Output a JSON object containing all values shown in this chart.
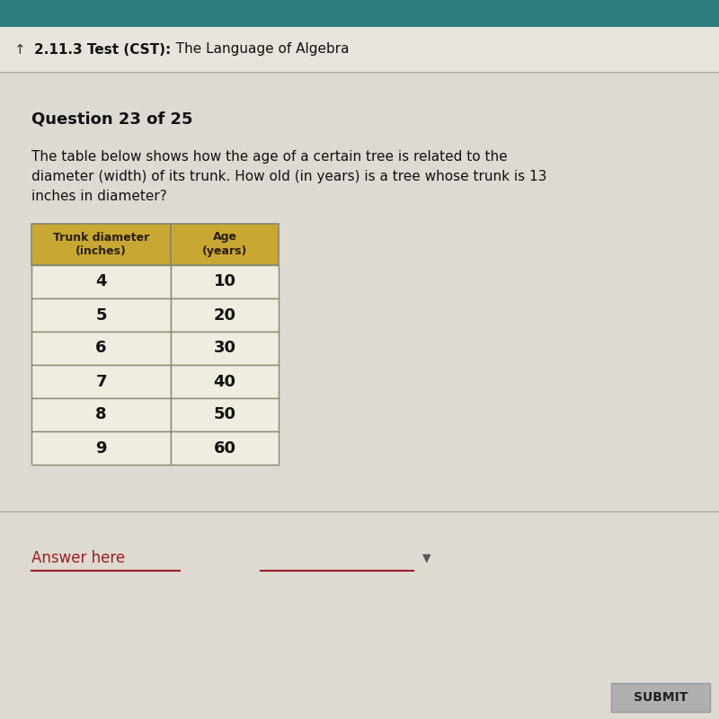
{
  "header_bg": "#2d7d7d",
  "page_bg": "#dedad2",
  "header_text_bold": "2.11.3 Test (CST):",
  "header_text_normal": "  The Language of Algebra",
  "header_text_color": "#1a1a1a",
  "header_symbol": "↑",
  "question_label": "Question 23 of 25",
  "question_text_line1": "The table below shows how the age of a certain tree is related to the",
  "question_text_line2": "diameter (width) of its trunk. How old (in years) is a tree whose trunk is 13",
  "question_text_line3": "inches in diameter?",
  "col1_header": "Trunk diameter\n(inches)",
  "col2_header": "Age\n(years)",
  "header_cell_bg": "#c8a832",
  "header_cell_text": "#2a1e00",
  "data_rows": [
    [
      4,
      10
    ],
    [
      5,
      20
    ],
    [
      6,
      30
    ],
    [
      7,
      40
    ],
    [
      8,
      50
    ],
    [
      9,
      60
    ]
  ],
  "data_cell_bg": "#f0ece0",
  "answer_label": "Answer here",
  "answer_label_color": "#9b2020",
  "submit_label": "SUBMIT",
  "submit_bg": "#b0b0b0",
  "submit_text_color": "#222222",
  "divider_color": "#aaaaaa",
  "border_color": "#888870"
}
